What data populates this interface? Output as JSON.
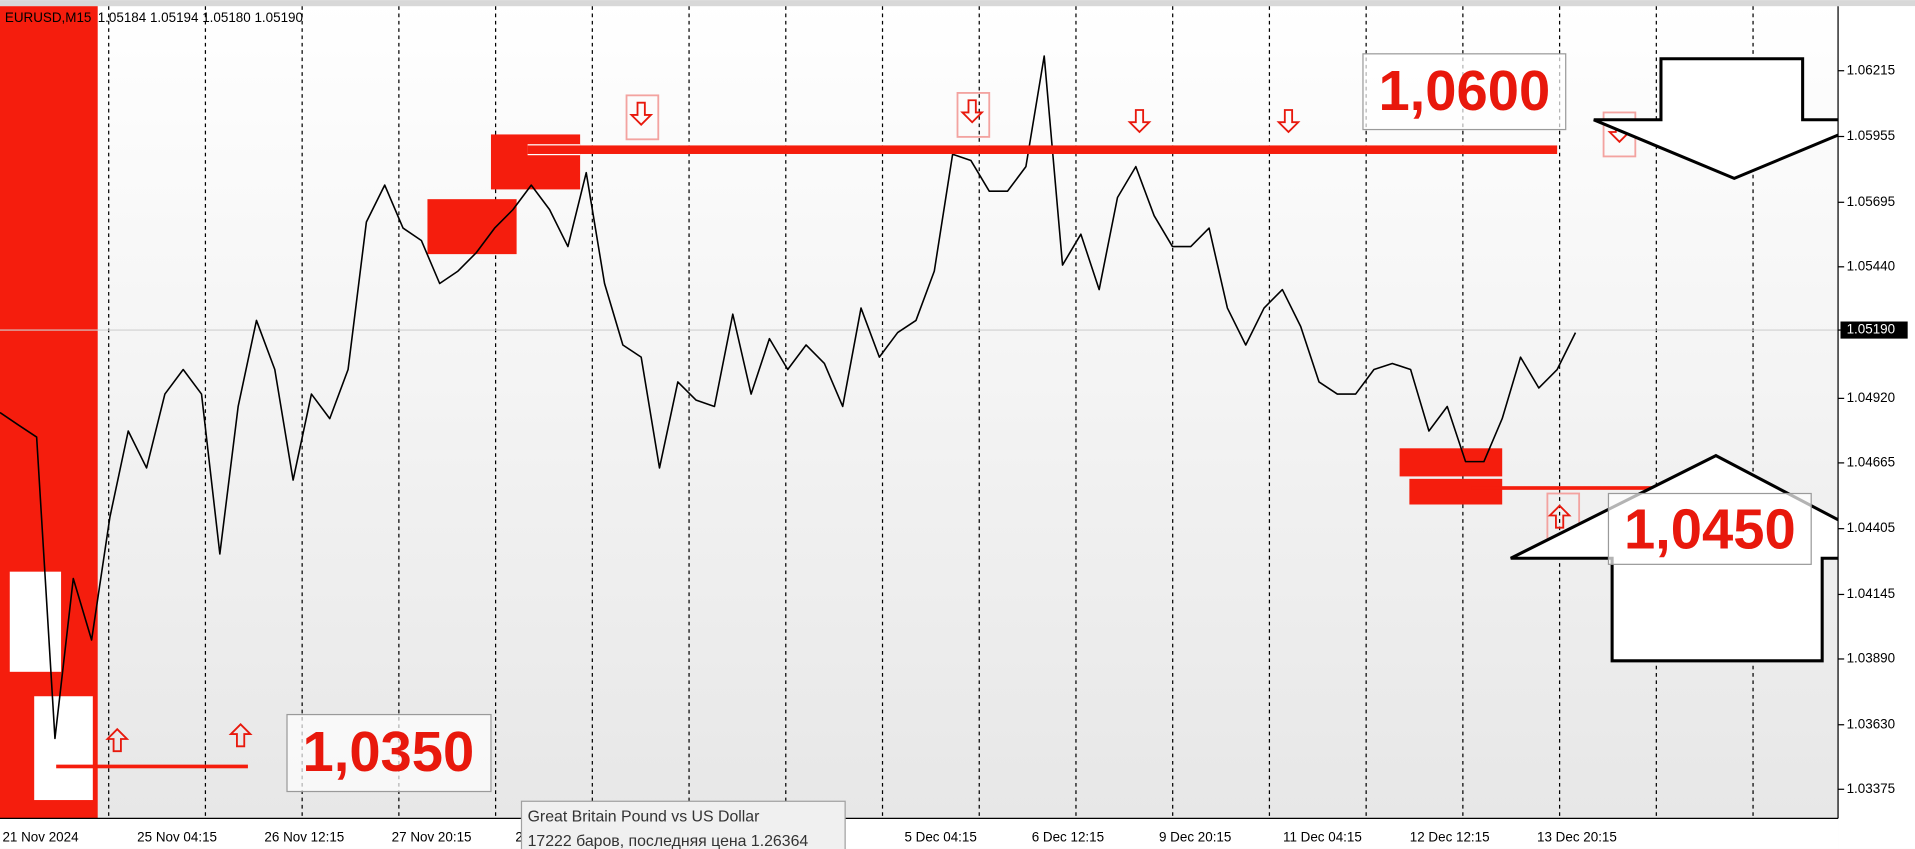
{
  "chart_data": {
    "type": "line",
    "title": "EURUSD,M15",
    "subtitle": "1.05184 1.05194 1.05180 1.05190",
    "color": "#000000",
    "ylim": [
      1.0326,
      1.0647
    ],
    "yticks": [
      1.06215,
      1.05955,
      1.05695,
      {
        "value": 1.0544,
        "label": "1.05440"
      },
      {
        "value": 1.0519,
        "label": "1.05190"
      },
      {
        "value": 1.0492,
        "label": "1.04920"
      },
      1.04665,
      1.04405,
      1.04145,
      {
        "value": 1.0389,
        "label": "1.03890"
      },
      {
        "value": 1.0363,
        "label": "1.03630"
      },
      1.03375
    ],
    "xticks": [
      "21 Nov 2024",
      "25 Nov 04:15",
      "26 Nov 12:15",
      "27 Nov 20:15",
      "2",
      null,
      null,
      "5 Dec 04:15",
      "6 Dec 12:15",
      "9 Dec 20:15",
      "11 Dec 04:15",
      "12 Dec 12:15",
      "13 Dec 20:15"
    ],
    "series": [
      {
        "name": "EURUSD",
        "color": "#000000",
        "values": [
          1.04864,
          1.04815,
          1.04767,
          1.03576,
          1.04208,
          1.03965,
          1.04451,
          1.04791,
          1.04645,
          1.04937,
          1.05034,
          1.04937,
          1.04305,
          1.04888,
          1.05228,
          1.05034,
          1.04597,
          1.04937,
          1.0484,
          1.05034,
          1.05617,
          1.05763,
          1.05593,
          1.05544,
          1.05374,
          1.05423,
          1.05496,
          1.05593,
          1.05666,
          1.05763,
          1.05666,
          1.0552,
          1.05812,
          1.05374,
          1.05131,
          1.05083,
          1.04645,
          1.04985,
          1.04913,
          1.04888,
          1.05253,
          1.04937,
          1.05156,
          1.05034,
          1.05131,
          1.05058,
          1.04888,
          1.05277,
          1.05083,
          1.0518,
          1.05228,
          1.05423,
          1.05885,
          1.0586,
          1.05739,
          1.05739,
          1.05836,
          1.06273,
          1.05447,
          1.05569,
          1.0535,
          1.05714,
          1.05836,
          1.05642,
          1.0552,
          1.0552,
          1.05593,
          1.05277,
          1.05131,
          1.05277,
          1.0535,
          1.05204,
          1.04985,
          1.04937,
          1.04937,
          1.05034,
          1.05058,
          1.05034,
          1.04791,
          1.04888,
          1.0467,
          1.0467,
          1.0484,
          1.05083,
          1.04961,
          1.05034,
          1.0518
        ]
      }
    ],
    "annotations": [
      "1,0600",
      "1,0450",
      "1,0350"
    ]
  },
  "tooltip": {
    "title": "Great Britain Pound vs US Dollar",
    "detail": "17222 баров, последняя цена 1.26364"
  }
}
